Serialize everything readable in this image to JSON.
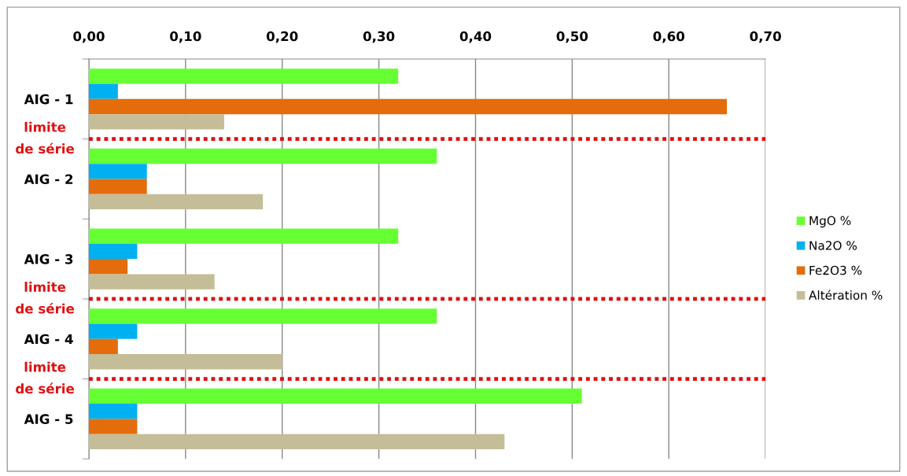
{
  "chart_data": {
    "type": "bar",
    "orientation": "horizontal",
    "categories": [
      "AIG - 1",
      "AIG - 2",
      "AIG - 3",
      "AIG - 4",
      "AIG - 5"
    ],
    "series": [
      {
        "name": "MgO %",
        "color": "#66ff33",
        "values": [
          0.32,
          0.36,
          0.32,
          0.36,
          0.51
        ]
      },
      {
        "name": "Na2O %",
        "color": "#00b0f0",
        "values": [
          0.03,
          0.06,
          0.05,
          0.05,
          0.05
        ]
      },
      {
        "name": "Fe2O3 %",
        "color": "#e46c0a",
        "values": [
          0.66,
          0.06,
          0.04,
          0.03,
          0.05
        ]
      },
      {
        "name": "Altération %",
        "color": "#c4bd97",
        "values": [
          0.14,
          0.18,
          0.13,
          0.2,
          0.43
        ]
      }
    ],
    "xlim": [
      0,
      0.7
    ],
    "xticks": [
      {
        "value": 0,
        "label": "0,00"
      },
      {
        "value": 0.1,
        "label": "0,10"
      },
      {
        "value": 0.2,
        "label": "0,20"
      },
      {
        "value": 0.3,
        "label": "0,30"
      },
      {
        "value": 0.4,
        "label": "0,40"
      },
      {
        "value": 0.5,
        "label": "0,50"
      },
      {
        "value": 0.6,
        "label": "0,60"
      },
      {
        "value": 0.7,
        "label": "0,70"
      }
    ],
    "grid": "x",
    "legend": "right",
    "annotations": [
      "limite de série",
      "limite de série",
      "limite de série"
    ]
  }
}
